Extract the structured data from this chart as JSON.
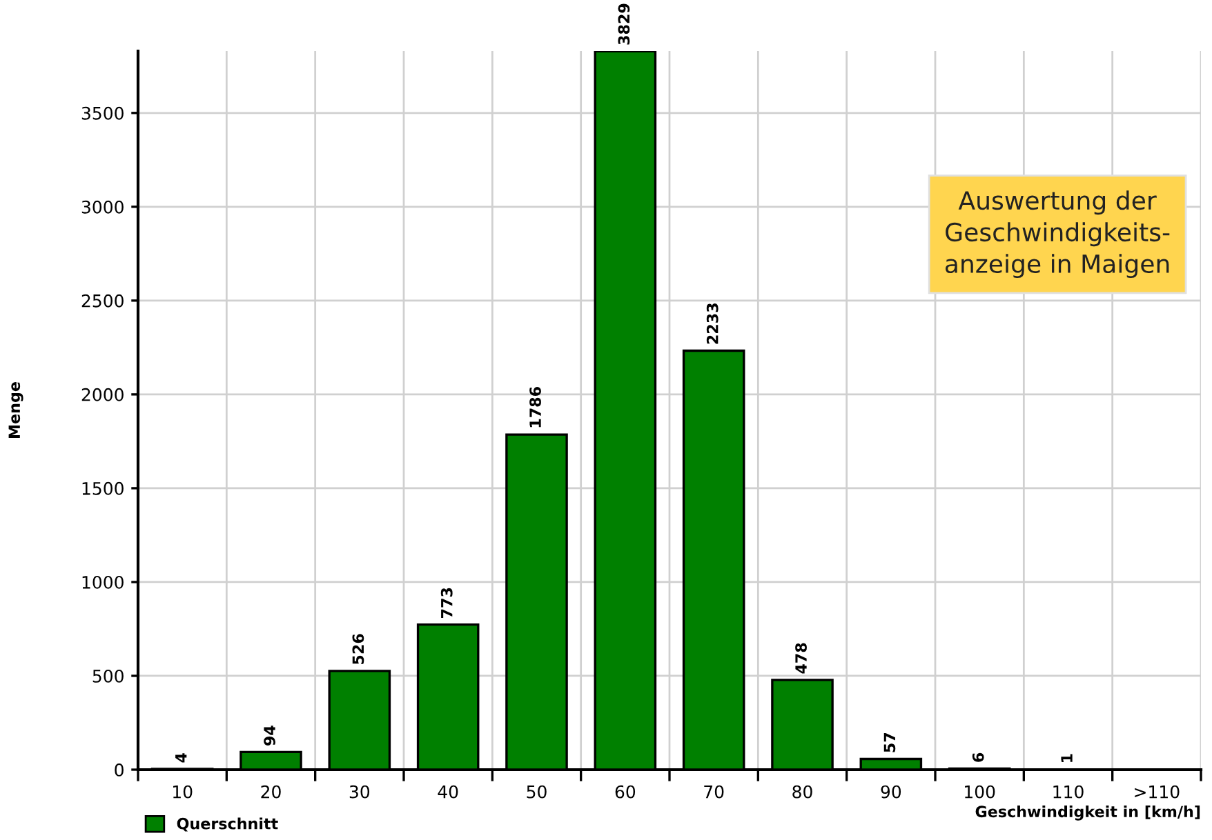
{
  "chart_data": {
    "type": "bar",
    "xlabel": "Geschwindigkeit in [km/h]",
    "ylabel": "Menge",
    "categories": [
      "10",
      "20",
      "30",
      "40",
      "50",
      "60",
      "70",
      "80",
      "90",
      "100",
      "110",
      ">110"
    ],
    "series": [
      {
        "name": "Querschnitt",
        "color": "#008000",
        "values": [
          4,
          94,
          526,
          773,
          1786,
          3829,
          2233,
          478,
          57,
          6,
          1,
          null
        ],
        "value_labels": [
          "4",
          "94",
          "526",
          "773",
          "1786",
          "3829",
          "2233",
          "478",
          "57",
          "6",
          "1",
          null
        ]
      }
    ],
    "ylim": [
      0,
      3830
    ],
    "yticks": [
      0,
      500,
      1000,
      1500,
      2000,
      2500,
      3000,
      3500
    ],
    "grid": true,
    "legend": "bottom left",
    "annotations": [
      "Auswertung der\nGeschwindigkeits-\nanzeige in Maigen"
    ]
  }
}
